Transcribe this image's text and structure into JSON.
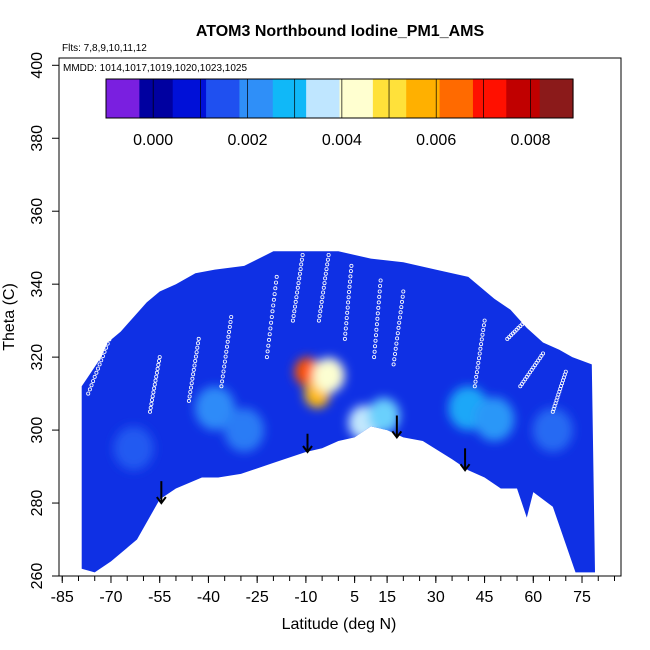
{
  "chart_data": {
    "type": "heatmap",
    "title": "ATOM3 Northbound Iodine_PM1_AMS",
    "annotations": {
      "flights": "Flts: 7,8,9,10,11,12",
      "dates": "MMDD: 1014,1017,1019,1020,1023,1025"
    },
    "xlabel": "Latitude (deg N)",
    "ylabel": "Theta (C)",
    "xlim": [
      -86,
      87
    ],
    "ylim": [
      260,
      402
    ],
    "x_ticks": [
      -85,
      -70,
      -55,
      -40,
      -25,
      -10,
      5,
      15,
      30,
      45,
      60,
      75
    ],
    "y_ticks": [
      260,
      280,
      300,
      320,
      340,
      360,
      380,
      400
    ],
    "colorbar": {
      "range": [
        -0.001,
        0.0089
      ],
      "ticks": [
        0.0,
        0.002,
        0.004,
        0.006,
        0.008
      ],
      "tick_labels": [
        "0.000",
        "0.002",
        "0.004",
        "0.006",
        "0.008"
      ],
      "colors": [
        "#7a1fe0",
        "#0000a0",
        "#0010d8",
        "#1f50f0",
        "#2f8ff8",
        "#10b8f8",
        "#bfe6ff",
        "#ffffd0",
        "#ffe13a",
        "#ffb000",
        "#ff6a00",
        "#ff1000",
        "#c00000",
        "#8b1a1a"
      ]
    },
    "domain": {
      "upper_boundary": [
        [
          -79,
          312
        ],
        [
          -76,
          316
        ],
        [
          -73,
          320
        ],
        [
          -71,
          324
        ],
        [
          -67,
          327
        ],
        [
          -63,
          331
        ],
        [
          -59,
          335
        ],
        [
          -55,
          338
        ],
        [
          -50,
          340
        ],
        [
          -44,
          343
        ],
        [
          -38,
          344
        ],
        [
          -29,
          345
        ],
        [
          -20,
          349
        ],
        [
          -10,
          349
        ],
        [
          0,
          349
        ],
        [
          10,
          347
        ],
        [
          20,
          346
        ],
        [
          30,
          344
        ],
        [
          40,
          342
        ],
        [
          48,
          336
        ],
        [
          53,
          333
        ],
        [
          58,
          328
        ],
        [
          63,
          324
        ],
        [
          68,
          322
        ],
        [
          72,
          320
        ],
        [
          78,
          318
        ]
      ],
      "lower_boundary": [
        [
          -79,
          262
        ],
        [
          -75,
          261
        ],
        [
          -70,
          264
        ],
        [
          -62,
          270
        ],
        [
          -55,
          281
        ],
        [
          -50,
          284
        ],
        [
          -42,
          287
        ],
        [
          -37,
          287
        ],
        [
          -30,
          288
        ],
        [
          -20,
          291
        ],
        [
          -10,
          294
        ],
        [
          -5,
          295
        ],
        [
          0,
          297
        ],
        [
          5,
          298
        ],
        [
          10,
          301
        ],
        [
          15,
          300
        ],
        [
          20,
          298
        ],
        [
          26,
          297
        ],
        [
          35,
          292
        ],
        [
          40,
          289
        ],
        [
          45,
          287
        ],
        [
          50,
          284
        ],
        [
          55,
          284
        ],
        [
          58,
          276
        ],
        [
          60,
          283
        ],
        [
          66,
          279
        ],
        [
          73,
          261
        ],
        [
          79,
          261
        ]
      ]
    },
    "background_value": 0.0009,
    "hotspots": [
      {
        "lat": -9.5,
        "theta": 316,
        "value": 0.0068
      },
      {
        "lat": -6.5,
        "theta": 310,
        "value": 0.0057
      },
      {
        "lat": -3,
        "theta": 315,
        "value": 0.0043
      },
      {
        "lat": 8,
        "theta": 302,
        "value": 0.0036
      },
      {
        "lat": 14,
        "theta": 304,
        "value": 0.0032
      },
      {
        "lat": 40,
        "theta": 306,
        "value": 0.0025
      },
      {
        "lat": 48,
        "theta": 303,
        "value": 0.0022
      },
      {
        "lat": -38,
        "theta": 306,
        "value": 0.002
      },
      {
        "lat": -29,
        "theta": 300,
        "value": 0.0018
      },
      {
        "lat": -63,
        "theta": 295,
        "value": 0.0014
      },
      {
        "lat": 66,
        "theta": 300,
        "value": 0.0016
      }
    ],
    "arrows": [
      {
        "lat": -54.5,
        "theta_top": 286,
        "theta_tip": 280
      },
      {
        "lat": -9.5,
        "theta_top": 299,
        "theta_tip": 294
      },
      {
        "lat": 18,
        "theta_top": 304,
        "theta_tip": 298
      },
      {
        "lat": 39,
        "theta_top": 295,
        "theta_tip": 289
      }
    ],
    "flight_tracks": [
      {
        "lat_start": -77,
        "theta_start": 310,
        "lat_end": -70,
        "theta_end": 326
      },
      {
        "lat_start": -58,
        "theta_start": 305,
        "lat_end": -55,
        "theta_end": 320
      },
      {
        "lat_start": -46,
        "theta_start": 308,
        "lat_end": -43,
        "theta_end": 325
      },
      {
        "lat_start": -36,
        "theta_start": 312,
        "lat_end": -33,
        "theta_end": 331
      },
      {
        "lat_start": -22,
        "theta_start": 320,
        "lat_end": -19,
        "theta_end": 342
      },
      {
        "lat_start": -14,
        "theta_start": 330,
        "lat_end": -11,
        "theta_end": 348
      },
      {
        "lat_start": -6,
        "theta_start": 330,
        "lat_end": -3,
        "theta_end": 348
      },
      {
        "lat_start": 2,
        "theta_start": 325,
        "lat_end": 4,
        "theta_end": 345
      },
      {
        "lat_start": 11,
        "theta_start": 320,
        "lat_end": 13,
        "theta_end": 341
      },
      {
        "lat_start": 17,
        "theta_start": 318,
        "lat_end": 20,
        "theta_end": 338
      },
      {
        "lat_start": 42,
        "theta_start": 312,
        "lat_end": 45,
        "theta_end": 330
      },
      {
        "lat_start": 52,
        "theta_start": 325,
        "lat_end": 60,
        "theta_end": 332
      },
      {
        "lat_start": 56,
        "theta_start": 312,
        "lat_end": 63,
        "theta_end": 321
      },
      {
        "lat_start": 66,
        "theta_start": 305,
        "lat_end": 70,
        "theta_end": 316
      }
    ]
  }
}
